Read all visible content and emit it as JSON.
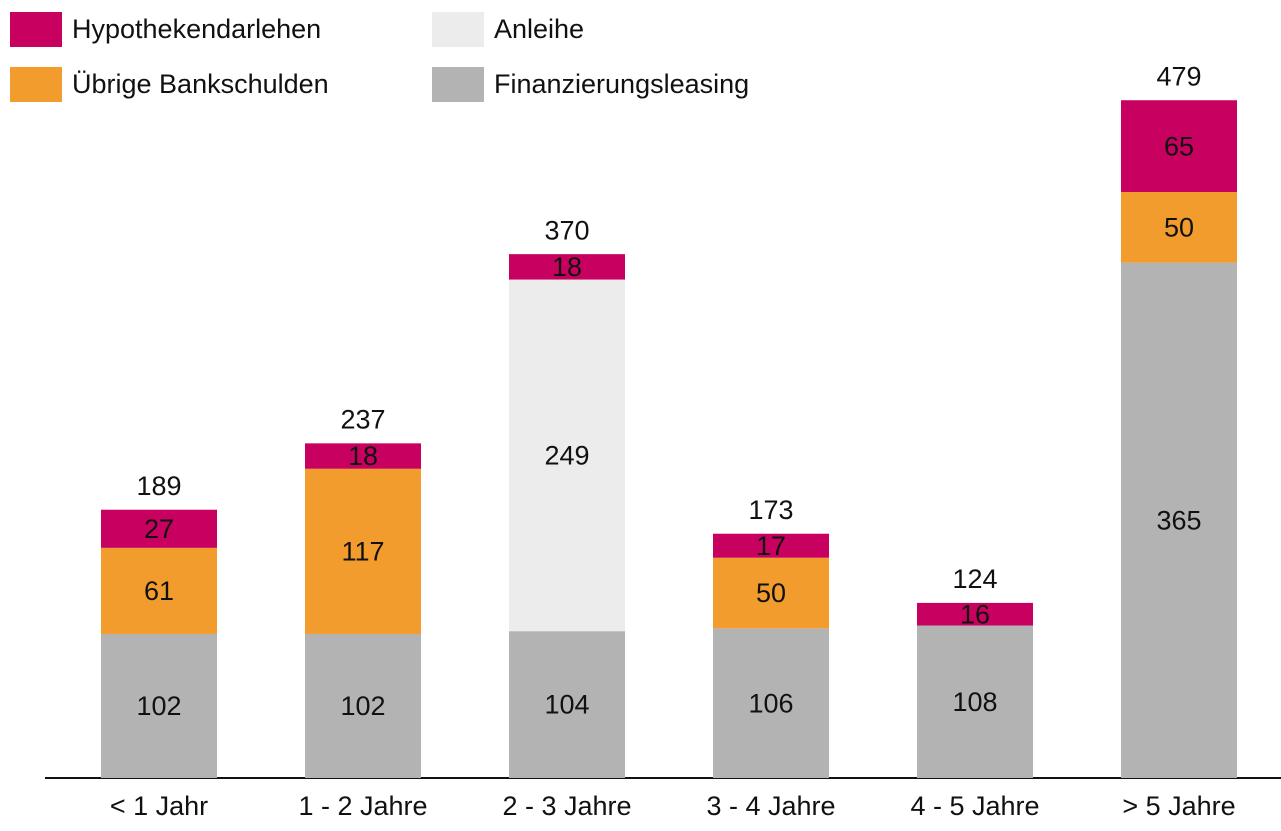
{
  "chart_data": {
    "type": "stacked_bar",
    "categories": [
      "< 1 Jahr",
      "1 - 2 Jahre",
      "2 - 3 Jahre",
      "3 - 4 Jahre",
      "4 - 5 Jahre",
      "> 5 Jahre"
    ],
    "series": [
      {
        "name": "Hypothekendarlehen",
        "color": "#c8005f",
        "values": [
          27,
          18,
          18,
          17,
          16,
          65
        ]
      },
      {
        "name": "Übrige Bankschulden",
        "color": "#f39c2e",
        "values": [
          61,
          117,
          null,
          50,
          null,
          50
        ]
      },
      {
        "name": "Anleihe",
        "color": "#ececec",
        "values": [
          null,
          null,
          249,
          null,
          null,
          null
        ]
      },
      {
        "name": "Finanzierungsleasing",
        "color": "#b3b3b3",
        "values": [
          102,
          102,
          104,
          106,
          108,
          365
        ]
      }
    ],
    "totals": [
      189,
      237,
      370,
      173,
      124,
      479
    ],
    "ylim": [
      0,
      500
    ]
  }
}
